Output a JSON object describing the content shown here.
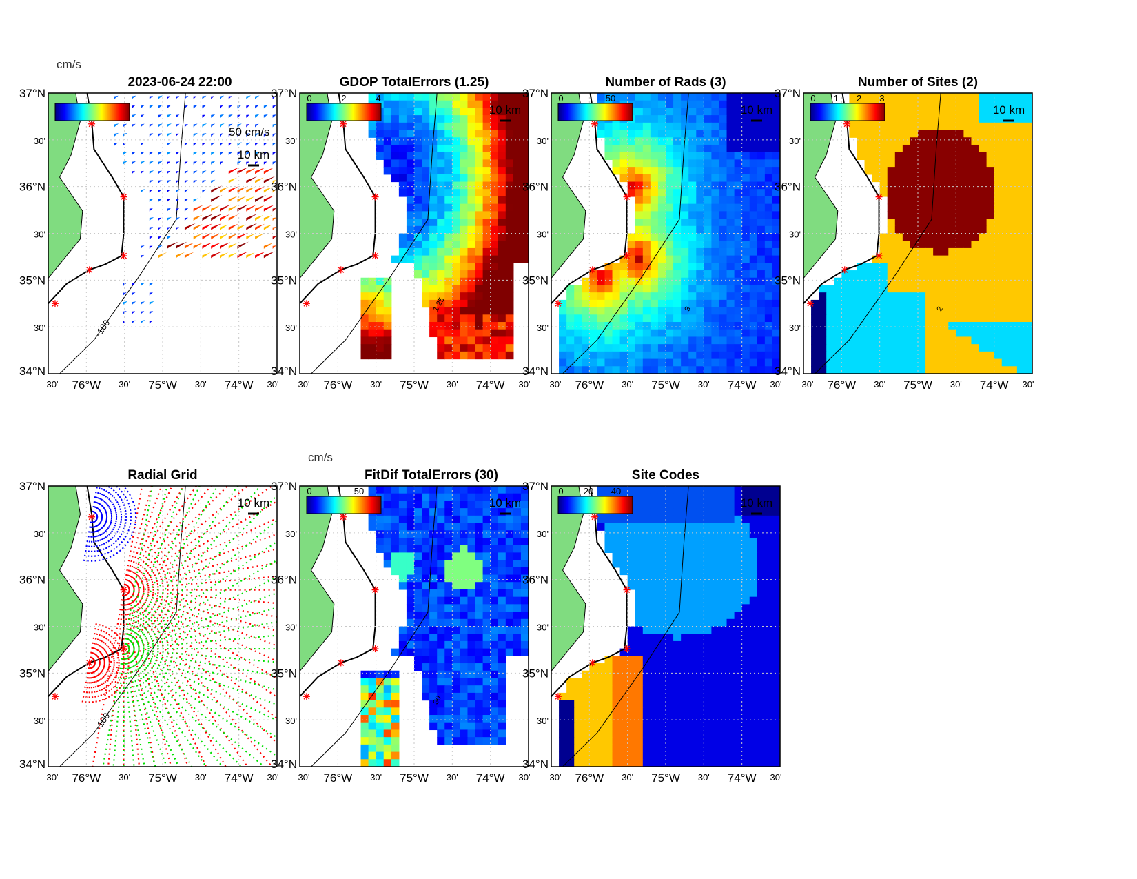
{
  "figure": {
    "timestamp_title": "2023-06-24 22:00",
    "units_label": "cm/s",
    "vector_scale_label": "50 cm/s",
    "distance_scale_label": "10 km",
    "depth_contour_label": "-100"
  },
  "axes": {
    "lat_ticks": [
      "37°N",
      "30'",
      "36°N",
      "30'",
      "35°N",
      "30'",
      "34°N"
    ],
    "lon_ticks": [
      "30'",
      "76°W",
      "30'",
      "75°W",
      "30'",
      "74°W",
      "30'"
    ],
    "lat_range": [
      34,
      37
    ],
    "lon_range": [
      -76.5,
      -73.5
    ]
  },
  "chart_data": [
    {
      "id": "vectors",
      "type": "quiver",
      "title": "2023-06-24 22:00",
      "colorbar_label": "cm/s",
      "colorbar_ticks": [],
      "scale": "50 cm/s"
    },
    {
      "id": "gdop",
      "type": "heatmap",
      "title": "GDOP TotalErrors (1.25)",
      "colorbar_ticks": [
        "0",
        "2",
        "4"
      ],
      "clim": [
        0,
        4
      ],
      "contour_label": "1.25"
    },
    {
      "id": "rads",
      "type": "heatmap",
      "title": "Number of Rads (3)",
      "colorbar_ticks": [
        "0",
        "50"
      ],
      "clim": [
        0,
        70
      ],
      "contour_label": "3"
    },
    {
      "id": "sites",
      "type": "heatmap",
      "title": "Number of Sites (2)",
      "colorbar_ticks": [
        "0",
        "1",
        "2",
        "3"
      ],
      "clim": [
        0,
        3
      ],
      "contour_label": "2"
    },
    {
      "id": "radgrid",
      "type": "scatter",
      "title": "Radial Grid",
      "colorbar_ticks": []
    },
    {
      "id": "fitdif",
      "type": "heatmap",
      "title": "FitDif TotalErrors (30)",
      "colorbar_label": "cm/s",
      "colorbar_ticks": [
        "0",
        "50"
      ],
      "clim": [
        0,
        70
      ],
      "contour_label": "30"
    },
    {
      "id": "sitecodes",
      "type": "heatmap",
      "title": "Site Codes",
      "colorbar_ticks": [
        "0",
        "20",
        "40"
      ],
      "clim": [
        0,
        50
      ]
    }
  ],
  "colors": {
    "land": "#80DC80",
    "site_marker": "#FF0000",
    "grid": "#C8C8C8"
  }
}
